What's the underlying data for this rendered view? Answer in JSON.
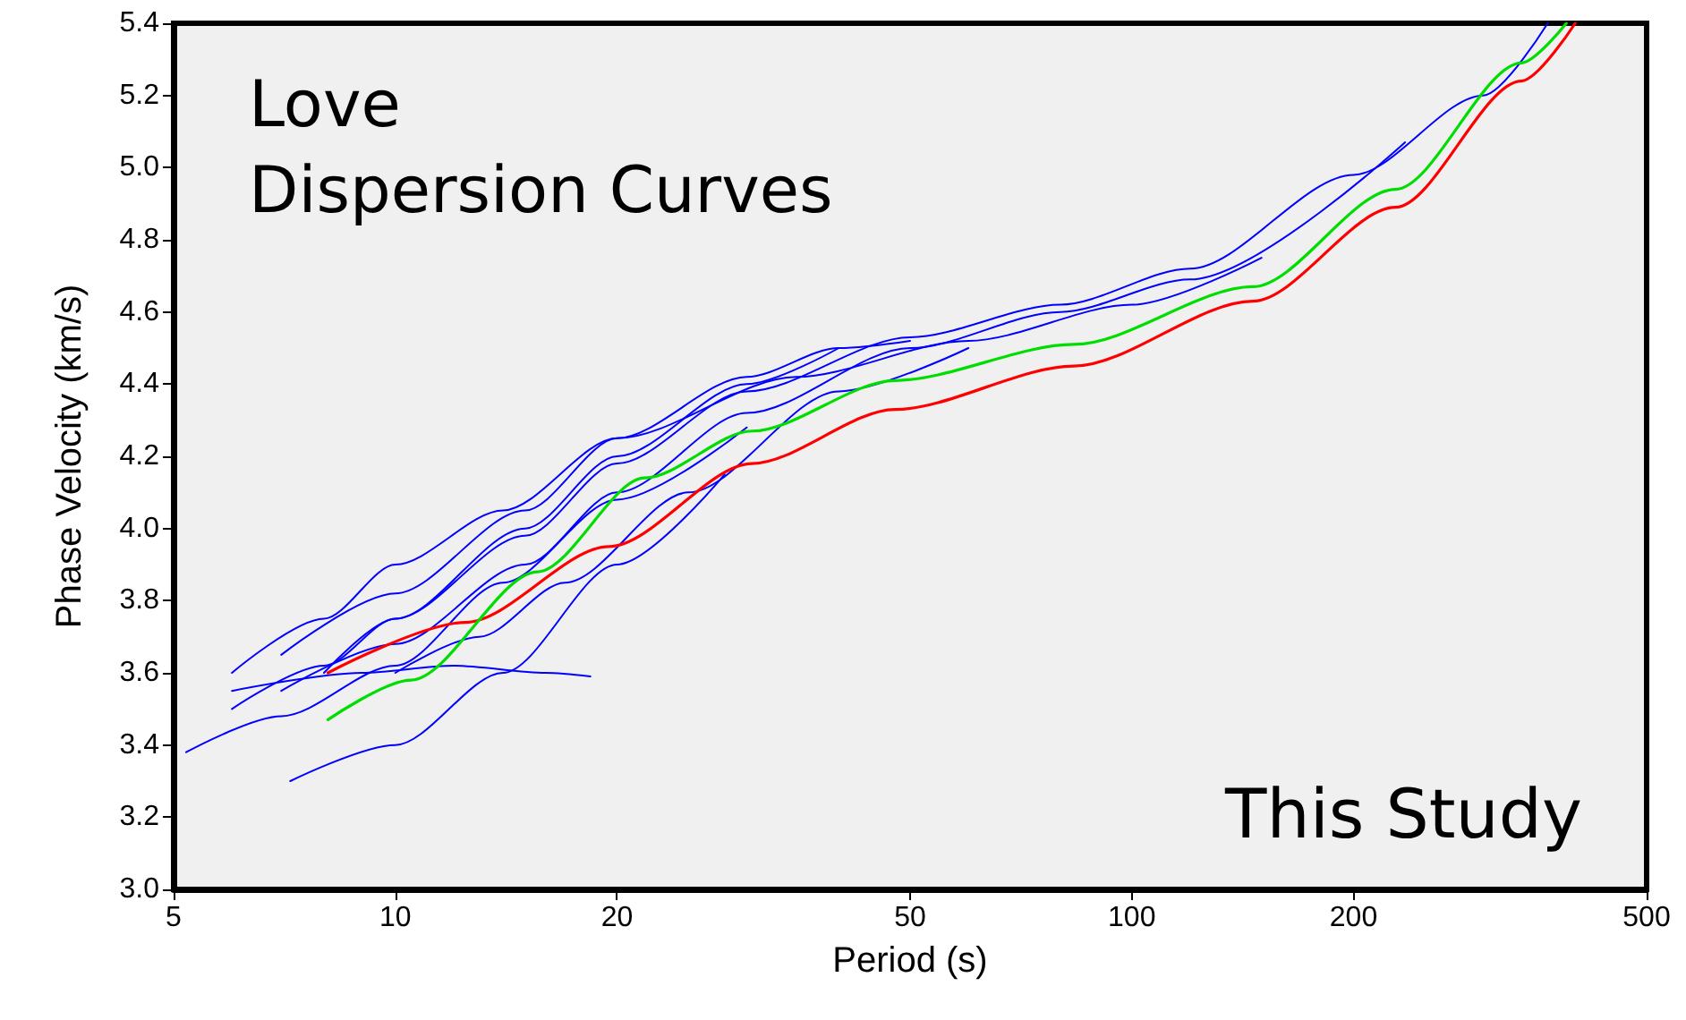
{
  "chart_data": {
    "type": "line",
    "title": "Love\nDispersion Curves",
    "xlabel": "Period (s)",
    "ylabel": "Phase Velocity (km/s)",
    "annotations": [
      "This Study"
    ],
    "log": "x",
    "xlim": [
      5,
      500
    ],
    "xticks": [
      5,
      10,
      20,
      50,
      100,
      200,
      500
    ],
    "ylim": [
      3.0,
      5.4
    ],
    "yticks": [
      {
        "value": 3.0,
        "label": "3.0"
      },
      {
        "value": 3.2,
        "label": "3.2"
      },
      {
        "value": 3.4,
        "label": "3.4"
      },
      {
        "value": 3.6,
        "label": "3.6"
      },
      {
        "value": 3.8,
        "label": "3.8"
      },
      {
        "value": 4.0,
        "label": "4.0"
      },
      {
        "value": 4.2,
        "label": "4.2"
      },
      {
        "value": 4.4,
        "label": "4.4"
      },
      {
        "value": 4.6,
        "label": "4.6"
      },
      {
        "value": 4.8,
        "label": "4.8"
      },
      {
        "value": 5.0,
        "label": "5.0"
      },
      {
        "value": 5.2,
        "label": "5.2"
      },
      {
        "value": 5.4,
        "label": "5.4"
      }
    ],
    "grid": false,
    "marker": "none",
    "line_style": "solid",
    "series": [
      {
        "color": "#0000ff",
        "x": [
          8,
          10,
          15,
          20,
          30,
          50,
          80,
          120,
          200,
          300,
          367
        ],
        "values": [
          3.6,
          3.75,
          3.98,
          4.18,
          4.38,
          4.53,
          4.62,
          4.72,
          4.98,
          5.2,
          5.4
        ]
      },
      {
        "color": "#0000ff",
        "x": [
          7,
          10,
          15,
          20,
          30,
          50,
          80,
          120,
          235
        ],
        "values": [
          3.55,
          3.68,
          3.9,
          4.1,
          4.32,
          4.5,
          4.6,
          4.69,
          5.07
        ]
      },
      {
        "color": "#0000ff",
        "x": [
          6,
          8,
          10,
          15,
          20,
          30,
          40
        ],
        "values": [
          3.5,
          3.62,
          3.75,
          4.0,
          4.2,
          4.4,
          4.5
        ]
      },
      {
        "color": "#0000ff",
        "x": [
          5.2,
          7,
          10,
          14,
          20,
          30
        ],
        "values": [
          3.38,
          3.48,
          3.62,
          3.85,
          4.08,
          4.28
        ]
      },
      {
        "color": "#0000ff",
        "x": [
          7.2,
          10,
          14,
          20,
          28
        ],
        "values": [
          3.3,
          3.4,
          3.6,
          3.9,
          4.15
        ]
      },
      {
        "color": "#0000ff",
        "x": [
          6,
          9,
          12,
          16,
          18.4
        ],
        "values": [
          3.55,
          3.6,
          3.62,
          3.6,
          3.59
        ]
      },
      {
        "color": "#0000ff",
        "x": [
          6,
          8,
          10,
          14,
          20,
          30,
          40,
          50
        ],
        "values": [
          3.6,
          3.75,
          3.9,
          4.05,
          4.25,
          4.42,
          4.5,
          4.52
        ]
      },
      {
        "color": "#0000ff",
        "x": [
          10,
          13,
          17,
          25,
          40,
          60
        ],
        "values": [
          3.6,
          3.7,
          3.85,
          4.1,
          4.38,
          4.5
        ]
      },
      {
        "color": "#0000ff",
        "x": [
          7,
          10,
          15,
          20,
          35,
          60,
          100,
          150
        ],
        "values": [
          3.65,
          3.82,
          4.05,
          4.25,
          4.42,
          4.52,
          4.62,
          4.75
        ]
      },
      {
        "color": "#ff0000",
        "x": [
          8.1,
          12.45,
          19.5,
          30.5,
          47.7,
          83.4,
          146,
          228,
          338,
          400
        ],
        "values": [
          3.6,
          3.74,
          3.95,
          4.18,
          4.33,
          4.45,
          4.63,
          4.89,
          5.24,
          5.4
        ]
      },
      {
        "color": "#00dd00",
        "x": [
          8.1,
          10.5,
          15.6,
          21.8,
          30.5,
          47.7,
          83.4,
          146,
          228,
          338,
          389
        ],
        "values": [
          3.47,
          3.58,
          3.88,
          4.14,
          4.27,
          4.41,
          4.51,
          4.67,
          4.94,
          5.29,
          5.4
        ]
      }
    ]
  }
}
